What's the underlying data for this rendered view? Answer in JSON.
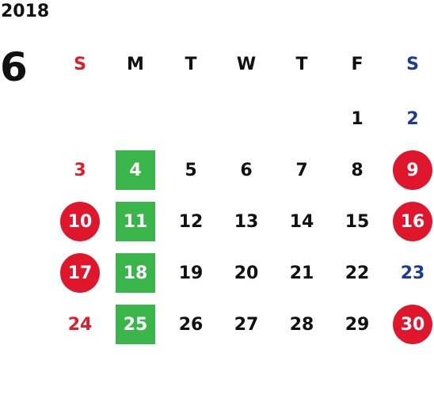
{
  "year": "2018",
  "month": "6",
  "weekdays": [
    "S",
    "M",
    "T",
    "W",
    "T",
    "F",
    "S"
  ],
  "colors": {
    "sunday": "#e01e2b",
    "saturday": "#1b3a9a",
    "holiday_circle": "#e0162d",
    "green_highlight": "#3ab54a",
    "text": "#111111"
  },
  "weeks": [
    [
      null,
      null,
      null,
      null,
      null,
      {
        "d": "1"
      },
      {
        "d": "2"
      }
    ],
    [
      {
        "d": "3"
      },
      {
        "d": "4",
        "mark": "green"
      },
      {
        "d": "5"
      },
      {
        "d": "6"
      },
      {
        "d": "7"
      },
      {
        "d": "8"
      },
      {
        "d": "9",
        "mark": "circle"
      }
    ],
    [
      {
        "d": "10",
        "mark": "circle"
      },
      {
        "d": "11",
        "mark": "green"
      },
      {
        "d": "12"
      },
      {
        "d": "13"
      },
      {
        "d": "14"
      },
      {
        "d": "15"
      },
      {
        "d": "16",
        "mark": "circle"
      }
    ],
    [
      {
        "d": "17",
        "mark": "circle"
      },
      {
        "d": "18",
        "mark": "green"
      },
      {
        "d": "19"
      },
      {
        "d": "20"
      },
      {
        "d": "21"
      },
      {
        "d": "22"
      },
      {
        "d": "23"
      }
    ],
    [
      {
        "d": "24"
      },
      {
        "d": "25",
        "mark": "green"
      },
      {
        "d": "26"
      },
      {
        "d": "27"
      },
      {
        "d": "28"
      },
      {
        "d": "29"
      },
      {
        "d": "30",
        "mark": "circle"
      }
    ]
  ]
}
